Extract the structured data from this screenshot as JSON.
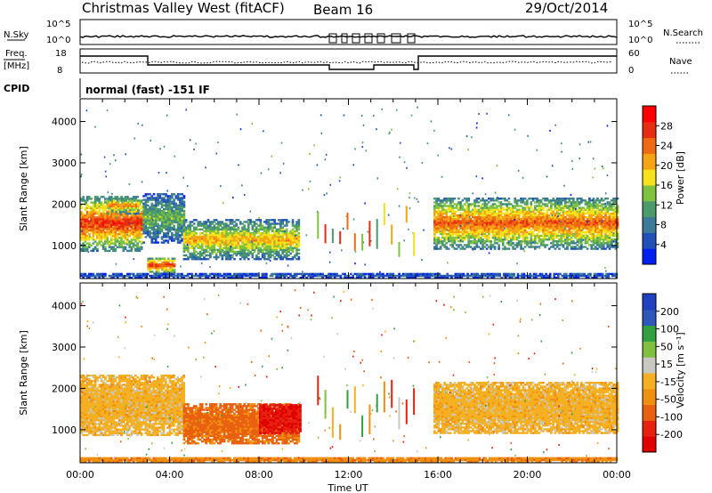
{
  "header": {
    "station": "Christmas Valley West (fitACF)",
    "beam": "Beam 16",
    "date": "29/Oct/2014"
  },
  "strips": {
    "nsky_label": "N.Sky",
    "nsearch_label": "N.Search",
    "nsky_ticks": [
      "10^5",
      "10^0"
    ],
    "nsearch_ticks": [
      "10^5",
      "10^0"
    ],
    "freq_label_1": "Freq.",
    "freq_label_2": "[MHz]",
    "freq_ticks": [
      "18",
      "8"
    ],
    "nave_label": "Nave",
    "nave_ticks": [
      "60",
      "0"
    ],
    "cpid_label": "CPID",
    "cpid_text": "normal (fast) -151 IF"
  },
  "colorbars": {
    "power_label": "Power [dB]",
    "power_ticks": [
      "28",
      "24",
      "20",
      "16",
      "12",
      "8",
      "4"
    ],
    "power_colors": [
      "#0020f0",
      "#2050b8",
      "#3b7a98",
      "#4b9a6a",
      "#7fc23f",
      "#f5e21a",
      "#f5a414",
      "#ef6a12",
      "#e82c12",
      "#ff0000"
    ],
    "velocity_label": "Velocity [m s⁻¹]",
    "velocity_ticks": [
      "200",
      "100",
      "50",
      "15",
      "-15",
      "-50",
      "-100",
      "-200"
    ],
    "velocity_colors": [
      "#2040c0",
      "#2d57b8",
      "#32a040",
      "#80c040",
      "#c8c8c0",
      "#f5b022",
      "#f09010",
      "#e86010",
      "#e82010",
      "#e00000"
    ]
  },
  "chart_data": [
    {
      "type": "heatmap",
      "panel": "power",
      "ylabel": "Slant Range [km]",
      "ytick_labels": [
        "1000",
        "2000",
        "3000",
        "4000"
      ],
      "ylim": [
        200,
        4550
      ],
      "xlim_hours": [
        0,
        24
      ],
      "legend": "Power [dB]",
      "clim": [
        0,
        32
      ],
      "bands": [
        {
          "t0": 0.0,
          "t1": 2.7,
          "r0": 850,
          "r1": 2200,
          "value": 24
        },
        {
          "t0": 1.2,
          "t1": 2.6,
          "r0": 1750,
          "r1": 2150,
          "value": 20
        },
        {
          "t0": 2.8,
          "t1": 4.6,
          "r0": 1050,
          "r1": 2250,
          "value": 12
        },
        {
          "t0": 3.0,
          "t1": 4.2,
          "r0": 300,
          "r1": 700,
          "value": 24
        },
        {
          "t0": 4.6,
          "t1": 9.8,
          "r0": 650,
          "r1": 1600,
          "value": 18
        },
        {
          "t0": 0.0,
          "t1": 24.0,
          "r0": 200,
          "r1": 320,
          "value": 6
        },
        {
          "t0": 15.8,
          "t1": 24.0,
          "r0": 900,
          "r1": 2150,
          "value": 22
        }
      ]
    },
    {
      "type": "heatmap",
      "panel": "velocity",
      "ylabel": "Slant Range [km]",
      "ytick_labels": [
        "1000",
        "2000",
        "3000",
        "4000"
      ],
      "ylim": [
        200,
        4550
      ],
      "xlim_hours": [
        0,
        24
      ],
      "xlabel": "Time UT",
      "xtick_labels": [
        "00:00",
        "04:00",
        "08:00",
        "12:00",
        "16:00",
        "20:00",
        "00:00"
      ],
      "legend": "Velocity [m s⁻¹]",
      "clim": [
        -200,
        200
      ],
      "bands": [
        {
          "t0": 0.0,
          "t1": 4.6,
          "r0": 850,
          "r1": 2300,
          "value": 0
        },
        {
          "t0": 4.6,
          "t1": 9.8,
          "r0": 650,
          "r1": 1600,
          "value": -60
        },
        {
          "t0": 8.0,
          "t1": 9.8,
          "r0": 900,
          "r1": 1600,
          "value": -150
        },
        {
          "t0": 0.0,
          "t1": 24.0,
          "r0": 200,
          "r1": 320,
          "value": -40
        },
        {
          "t0": 15.8,
          "t1": 24.0,
          "r0": 900,
          "r1": 2150,
          "value": 0
        }
      ]
    }
  ]
}
